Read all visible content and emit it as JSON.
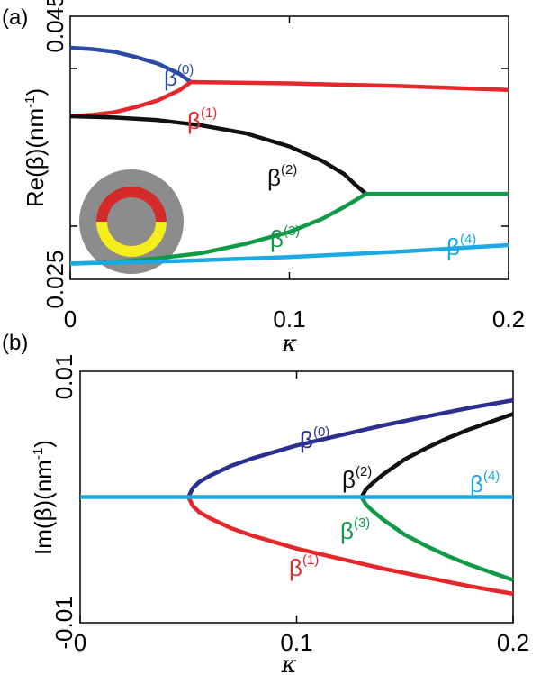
{
  "chart_data": [
    {
      "type": "line",
      "panel_label": "(a)",
      "xlabel": "κ",
      "ylabel": "Re(β)(nm⁻¹)",
      "ylabel_base": "Re(β)(nm",
      "ylabel_sup": "-1",
      "ylabel_tail": ")",
      "xlim": [
        0,
        0.2
      ],
      "ylim": [
        0.025,
        0.045
      ],
      "xticks": [
        0,
        0.1,
        0.2
      ],
      "xtick_labels": [
        "0",
        "0.1",
        "0.2"
      ],
      "yticks": [
        0.025,
        0.045
      ],
      "ytick_labels": [
        "0.025",
        "0.045"
      ],
      "grid": false,
      "inset": {
        "outer_color": "#8c8c8c",
        "upper_ring_color": "#d42a2a",
        "lower_ring_color": "#f6ee1c",
        "core_color": "#8c8c8c"
      },
      "series": [
        {
          "name": "β(0)",
          "label_base": "β",
          "label_sup": "(0)",
          "color": "#2b4aa6",
          "x": [
            0,
            0.01,
            0.02,
            0.03,
            0.04,
            0.05,
            0.055
          ],
          "y": [
            0.0426,
            0.0425,
            0.0423,
            0.0419,
            0.0414,
            0.0406,
            0.04
          ]
        },
        {
          "name": "β(1)",
          "label_base": "β",
          "label_sup": "(1)",
          "color": "#e5262b",
          "x": [
            0,
            0.01,
            0.02,
            0.03,
            0.04,
            0.05,
            0.055,
            0.1,
            0.15,
            0.2
          ],
          "y": [
            0.0374,
            0.0375,
            0.0377,
            0.0381,
            0.0386,
            0.0394,
            0.04,
            0.0399,
            0.0397,
            0.0394
          ]
        },
        {
          "name": "β(2)",
          "label_base": "β",
          "label_sup": "(2)",
          "color": "#111111",
          "x": [
            0,
            0.02,
            0.04,
            0.06,
            0.08,
            0.1,
            0.115,
            0.125,
            0.13,
            0.135
          ],
          "y": [
            0.0374,
            0.0373,
            0.0371,
            0.0367,
            0.0361,
            0.0351,
            0.034,
            0.033,
            0.0322,
            0.0315
          ]
        },
        {
          "name": "β(3)",
          "label_base": "β",
          "label_sup": "(3)",
          "color": "#109a48",
          "x": [
            0,
            0.02,
            0.04,
            0.06,
            0.08,
            0.1,
            0.115,
            0.125,
            0.13,
            0.135,
            0.2
          ],
          "y": [
            0.0262,
            0.0263,
            0.0266,
            0.027,
            0.0277,
            0.0286,
            0.0296,
            0.0305,
            0.031,
            0.0315,
            0.0315
          ]
        },
        {
          "name": "β(4)",
          "label_base": "β",
          "label_sup": "(4)",
          "color": "#1aa9e2",
          "x": [
            0,
            0.05,
            0.1,
            0.15,
            0.2
          ],
          "y": [
            0.0262,
            0.0264,
            0.0267,
            0.0271,
            0.0276
          ]
        }
      ]
    },
    {
      "type": "line",
      "panel_label": "(b)",
      "xlabel": "κ",
      "ylabel": "Im(β)(nm⁻¹)",
      "ylabel_base": "Im(β)(nm",
      "ylabel_sup": "-1",
      "ylabel_tail": ")",
      "xlim": [
        0,
        0.2
      ],
      "ylim": [
        -0.01,
        0.01
      ],
      "xticks": [
        0,
        0.1,
        0.2
      ],
      "xtick_labels": [
        "0",
        "0.1",
        "0.2"
      ],
      "yticks": [
        -0.01,
        0.01
      ],
      "ytick_labels": [
        "-0.01",
        "0.01"
      ],
      "grid": false,
      "series": [
        {
          "name": "β(0)",
          "label_base": "β",
          "label_sup": "(0)",
          "color": "#2b2f8f",
          "x": [
            0.05,
            0.052,
            0.055,
            0.06,
            0.07,
            0.08,
            0.1,
            0.12,
            0.14,
            0.16,
            0.18,
            0.2
          ],
          "y": [
            0,
            0.0007,
            0.0012,
            0.0017,
            0.0025,
            0.0031,
            0.0041,
            0.0049,
            0.0057,
            0.0064,
            0.0071,
            0.0077
          ]
        },
        {
          "name": "β(1)",
          "label_base": "β",
          "label_sup": "(1)",
          "color": "#e5262b",
          "x": [
            0.05,
            0.052,
            0.055,
            0.06,
            0.07,
            0.08,
            0.1,
            0.12,
            0.14,
            0.16,
            0.18,
            0.2
          ],
          "y": [
            0,
            -0.0007,
            -0.0012,
            -0.0017,
            -0.0025,
            -0.0031,
            -0.0041,
            -0.0049,
            -0.0057,
            -0.0064,
            -0.0071,
            -0.0077
          ]
        },
        {
          "name": "β(2)",
          "label_base": "β",
          "label_sup": "(2)",
          "color": "#111111",
          "x": [
            0.13,
            0.132,
            0.135,
            0.14,
            0.15,
            0.16,
            0.17,
            0.18,
            0.19,
            0.2
          ],
          "y": [
            0,
            0.0006,
            0.0011,
            0.0018,
            0.003,
            0.0039,
            0.0047,
            0.0054,
            0.006,
            0.0066
          ]
        },
        {
          "name": "β(3)",
          "label_base": "β",
          "label_sup": "(3)",
          "color": "#109a48",
          "x": [
            0.13,
            0.132,
            0.135,
            0.14,
            0.15,
            0.16,
            0.17,
            0.18,
            0.19,
            0.2
          ],
          "y": [
            0,
            -0.0006,
            -0.0011,
            -0.0018,
            -0.003,
            -0.0039,
            -0.0047,
            -0.0054,
            -0.006,
            -0.0066
          ]
        },
        {
          "name": "β(4)",
          "label_base": "β",
          "label_sup": "(4)",
          "color": "#1aa9e2",
          "x": [
            0,
            0.2
          ],
          "y": [
            0,
            0
          ]
        }
      ]
    }
  ]
}
